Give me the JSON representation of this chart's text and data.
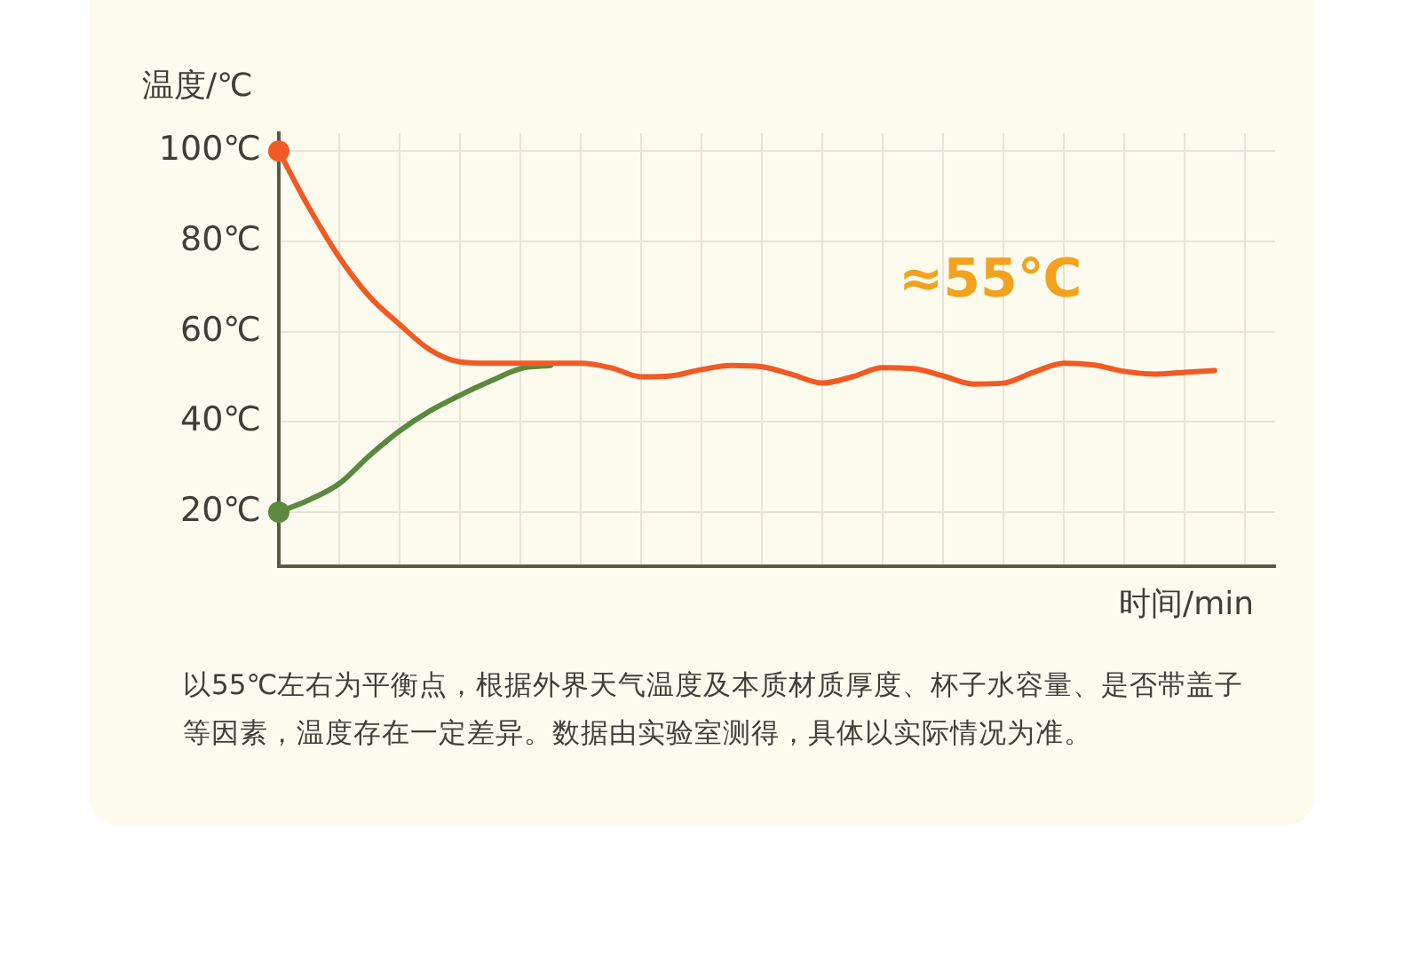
{
  "chart_data": {
    "type": "line",
    "ylabel": "温度/℃",
    "xlabel": "时间/min",
    "categories": [
      null,
      null,
      null,
      null,
      null,
      null,
      null,
      null,
      null,
      null,
      null,
      null,
      null,
      null,
      null,
      null,
      null,
      null,
      null,
      null,
      null,
      null,
      null,
      null,
      null,
      null,
      null,
      null,
      null,
      null,
      null,
      null,
      null,
      null
    ],
    "series": [
      {
        "color": "#f05a24",
        "values": [
          100,
          87.5,
          76.5,
          67.8,
          61.6,
          56,
          53.3,
          53,
          53,
          53,
          53,
          52,
          50,
          50.2,
          51.6,
          52.5,
          52.2,
          50.5,
          48.6,
          50,
          52,
          51.8,
          50.2,
          48.4,
          48.6,
          51,
          53,
          52.6,
          51.2,
          50.6,
          51,
          51.4,
          null,
          null
        ]
      },
      {
        "color": "#5a8a3f",
        "values": [
          20,
          22.7,
          26.3,
          32.5,
          38,
          42.4,
          45.9,
          49,
          51.8,
          52.5,
          null,
          null,
          null,
          null,
          null,
          null,
          null,
          null,
          null,
          null,
          null,
          null,
          null,
          null,
          null,
          null,
          null,
          null,
          null,
          null,
          null,
          null,
          null,
          null
        ]
      }
    ],
    "ylim": [
      8,
      104
    ],
    "yticks": [
      {
        "value": 20,
        "label": "20℃"
      },
      {
        "value": 40,
        "label": "40℃"
      },
      {
        "value": 60,
        "label": "60℃"
      },
      {
        "value": 80,
        "label": "80℃"
      },
      {
        "value": 100,
        "label": "100℃"
      }
    ],
    "tick_labels": "y",
    "grid": true,
    "line_style": "solid",
    "annotations": [
      "≈55℃",
      "以55℃左右为平衡点，根据外界天气温度及本质材质厚度、杯子水容量、是否带盖子等因素，温度存在一定差异。数据由实验室测得，具体以实际情况为准。"
    ]
  }
}
